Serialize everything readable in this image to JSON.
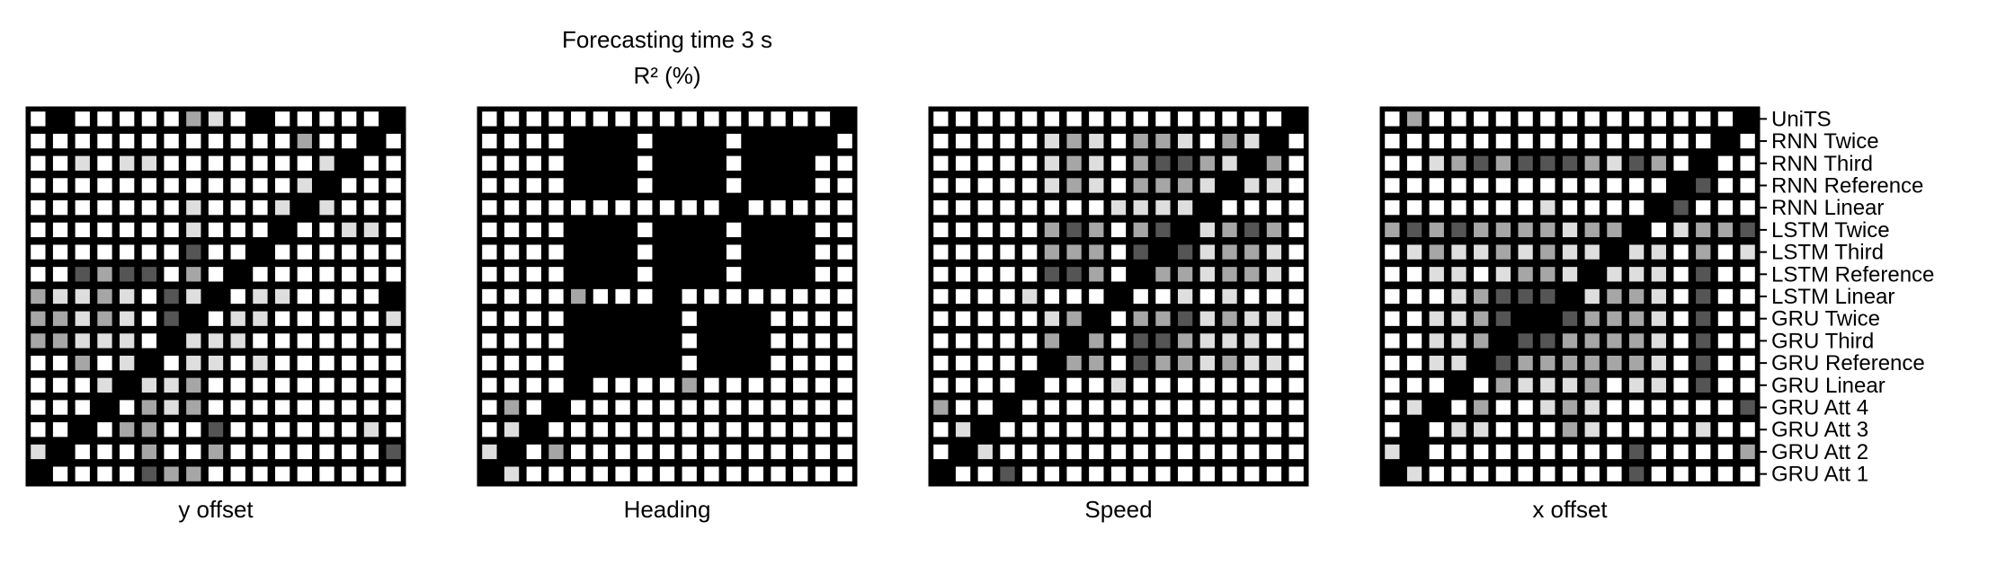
{
  "figure": {
    "title_line1": "Forecasting time 3 s",
    "title_line2": "R² (%)"
  },
  "chart_data": [
    {
      "type": "heatmap",
      "xlabel": "y offset",
      "scale": "0 = white, 4 = black",
      "rows": [
        [
          0,
          4,
          0,
          0,
          0,
          0,
          0,
          2,
          1,
          0,
          4,
          0,
          0,
          0,
          0,
          0,
          4
        ],
        [
          0,
          0,
          0,
          0,
          0,
          0,
          0,
          0,
          0,
          0,
          0,
          0,
          2,
          0,
          0,
          4,
          0
        ],
        [
          0,
          0,
          1,
          0,
          1,
          1,
          0,
          0,
          0,
          0,
          0,
          0,
          0,
          1,
          4,
          0,
          0
        ],
        [
          0,
          0,
          0,
          0,
          0,
          0,
          0,
          0,
          0,
          0,
          0,
          0,
          1,
          4,
          0,
          0,
          0
        ],
        [
          0,
          0,
          0,
          0,
          0,
          0,
          0,
          1,
          0,
          0,
          0,
          1,
          4,
          1,
          0,
          0,
          0
        ],
        [
          0,
          0,
          0,
          0,
          0,
          0,
          0,
          1,
          0,
          0,
          0,
          4,
          0,
          0,
          1,
          1,
          0
        ],
        [
          0,
          0,
          0,
          0,
          0,
          0,
          0,
          3,
          0,
          0,
          4,
          0,
          0,
          0,
          0,
          0,
          0
        ],
        [
          0,
          0,
          3,
          2,
          3,
          3,
          0,
          2,
          0,
          4,
          0,
          0,
          0,
          0,
          0,
          0,
          0
        ],
        [
          2,
          1,
          1,
          2,
          1,
          0,
          3,
          1,
          4,
          0,
          1,
          1,
          0,
          0,
          0,
          0,
          4
        ],
        [
          2,
          2,
          1,
          2,
          1,
          0,
          3,
          4,
          0,
          1,
          1,
          0,
          0,
          0,
          0,
          0,
          1
        ],
        [
          2,
          2,
          1,
          1,
          1,
          0,
          4,
          1,
          1,
          1,
          0,
          0,
          0,
          0,
          0,
          0,
          0
        ],
        [
          0,
          0,
          2,
          0,
          1,
          4,
          0,
          1,
          1,
          0,
          1,
          0,
          0,
          0,
          0,
          0,
          0
        ],
        [
          0,
          0,
          0,
          1,
          4,
          1,
          1,
          2,
          0,
          0,
          0,
          0,
          0,
          0,
          0,
          0,
          0
        ],
        [
          0,
          0,
          0,
          4,
          0,
          2,
          1,
          2,
          0,
          0,
          0,
          0,
          0,
          0,
          0,
          0,
          0
        ],
        [
          0,
          0,
          4,
          0,
          2,
          2,
          0,
          0,
          3,
          0,
          0,
          0,
          0,
          0,
          0,
          1,
          0
        ],
        [
          1,
          4,
          0,
          0,
          0,
          2,
          0,
          0,
          2,
          0,
          0,
          0,
          0,
          0,
          0,
          0,
          3
        ],
        [
          4,
          0,
          0,
          0,
          0,
          3,
          2,
          2,
          0,
          0,
          0,
          0,
          0,
          0,
          0,
          0,
          0
        ]
      ]
    },
    {
      "type": "heatmap",
      "xlabel": "Heading",
      "scale": "0 = white, 4 = black",
      "rows": [
        [
          0,
          0,
          0,
          0,
          0,
          0,
          0,
          0,
          0,
          0,
          0,
          0,
          0,
          0,
          0,
          0,
          4
        ],
        [
          0,
          0,
          0,
          0,
          4,
          4,
          4,
          0,
          4,
          4,
          4,
          0,
          4,
          4,
          4,
          4,
          0
        ],
        [
          0,
          0,
          0,
          0,
          4,
          4,
          4,
          0,
          4,
          4,
          4,
          0,
          4,
          4,
          4,
          0,
          0
        ],
        [
          0,
          0,
          0,
          0,
          4,
          4,
          4,
          0,
          4,
          4,
          4,
          0,
          4,
          4,
          4,
          0,
          0
        ],
        [
          0,
          0,
          0,
          0,
          0,
          0,
          0,
          0,
          0,
          0,
          0,
          4,
          0,
          0,
          0,
          0,
          0
        ],
        [
          0,
          0,
          0,
          0,
          4,
          4,
          4,
          0,
          4,
          4,
          4,
          0,
          4,
          4,
          4,
          0,
          0
        ],
        [
          0,
          0,
          0,
          0,
          4,
          4,
          4,
          0,
          4,
          4,
          4,
          0,
          4,
          4,
          4,
          0,
          0
        ],
        [
          0,
          0,
          0,
          0,
          4,
          4,
          4,
          0,
          4,
          4,
          4,
          0,
          4,
          4,
          4,
          0,
          0
        ],
        [
          0,
          0,
          0,
          0,
          2,
          0,
          0,
          0,
          4,
          0,
          0,
          0,
          0,
          0,
          0,
          0,
          0
        ],
        [
          0,
          0,
          0,
          0,
          4,
          4,
          4,
          4,
          4,
          0,
          4,
          4,
          4,
          0,
          0,
          0,
          0
        ],
        [
          0,
          0,
          0,
          0,
          4,
          4,
          4,
          4,
          4,
          0,
          4,
          4,
          4,
          0,
          0,
          0,
          0
        ],
        [
          0,
          0,
          0,
          0,
          4,
          4,
          4,
          4,
          4,
          0,
          4,
          4,
          4,
          0,
          0,
          0,
          0
        ],
        [
          0,
          0,
          0,
          0,
          4,
          0,
          0,
          0,
          0,
          2,
          0,
          0,
          0,
          0,
          0,
          0,
          0
        ],
        [
          0,
          2,
          0,
          4,
          0,
          0,
          0,
          0,
          0,
          0,
          0,
          0,
          0,
          0,
          0,
          0,
          0
        ],
        [
          0,
          1,
          4,
          0,
          0,
          0,
          0,
          0,
          0,
          0,
          0,
          0,
          0,
          0,
          0,
          0,
          0
        ],
        [
          1,
          4,
          0,
          2,
          0,
          0,
          0,
          0,
          0,
          0,
          0,
          0,
          0,
          0,
          0,
          0,
          0
        ],
        [
          4,
          1,
          0,
          0,
          0,
          0,
          0,
          0,
          0,
          0,
          0,
          0,
          0,
          0,
          0,
          0,
          0
        ]
      ]
    },
    {
      "type": "heatmap",
      "xlabel": "Speed",
      "scale": "0 = white, 4 = black",
      "rows": [
        [
          0,
          0,
          0,
          0,
          0,
          0,
          0,
          0,
          0,
          0,
          0,
          0,
          0,
          0,
          0,
          0,
          4
        ],
        [
          0,
          0,
          0,
          0,
          0,
          1,
          2,
          1,
          0,
          2,
          2,
          1,
          0,
          2,
          1,
          4,
          0
        ],
        [
          0,
          0,
          0,
          0,
          0,
          1,
          2,
          1,
          0,
          2,
          3,
          3,
          2,
          1,
          4,
          2,
          0
        ],
        [
          0,
          0,
          0,
          0,
          0,
          1,
          2,
          1,
          0,
          2,
          2,
          2,
          1,
          4,
          1,
          1,
          0
        ],
        [
          0,
          0,
          0,
          0,
          0,
          0,
          0,
          0,
          1,
          1,
          1,
          1,
          4,
          0,
          0,
          0,
          0
        ],
        [
          0,
          0,
          0,
          0,
          0,
          2,
          3,
          2,
          0,
          2,
          3,
          4,
          1,
          2,
          3,
          2,
          0
        ],
        [
          0,
          0,
          0,
          0,
          0,
          2,
          2,
          2,
          0,
          3,
          4,
          3,
          1,
          2,
          2,
          1,
          0
        ],
        [
          0,
          0,
          0,
          0,
          0,
          3,
          3,
          2,
          0,
          4,
          2,
          2,
          1,
          2,
          2,
          1,
          0
        ],
        [
          0,
          0,
          0,
          0,
          1,
          0,
          0,
          0,
          4,
          0,
          0,
          1,
          0,
          1,
          0,
          0,
          0
        ],
        [
          0,
          0,
          0,
          0,
          0,
          1,
          2,
          4,
          0,
          2,
          2,
          3,
          1,
          2,
          1,
          1,
          0
        ],
        [
          0,
          0,
          0,
          0,
          0,
          2,
          4,
          2,
          0,
          3,
          3,
          2,
          1,
          1,
          1,
          0,
          0
        ],
        [
          0,
          0,
          0,
          0,
          0,
          4,
          2,
          2,
          0,
          3,
          2,
          2,
          1,
          2,
          1,
          1,
          0
        ],
        [
          0,
          0,
          0,
          0,
          4,
          0,
          0,
          0,
          1,
          0,
          0,
          0,
          0,
          0,
          0,
          0,
          0
        ],
        [
          2,
          0,
          0,
          4,
          0,
          0,
          0,
          0,
          0,
          0,
          0,
          0,
          0,
          0,
          0,
          0,
          0
        ],
        [
          0,
          1,
          4,
          0,
          0,
          0,
          0,
          0,
          0,
          0,
          0,
          0,
          0,
          0,
          0,
          0,
          0
        ],
        [
          0,
          4,
          1,
          0,
          0,
          0,
          0,
          0,
          0,
          0,
          0,
          0,
          0,
          0,
          0,
          0,
          0
        ],
        [
          4,
          0,
          0,
          3,
          0,
          0,
          0,
          0,
          0,
          0,
          0,
          0,
          0,
          0,
          0,
          0,
          0
        ]
      ]
    },
    {
      "type": "heatmap",
      "xlabel": "x offset",
      "scale": "0 = white, 4 = black",
      "rows": [
        [
          0,
          2,
          0,
          0,
          0,
          0,
          0,
          0,
          0,
          0,
          0,
          0,
          0,
          0,
          0,
          0,
          4
        ],
        [
          0,
          0,
          0,
          0,
          0,
          0,
          0,
          0,
          0,
          0,
          0,
          0,
          0,
          0,
          0,
          4,
          0
        ],
        [
          0,
          0,
          1,
          2,
          3,
          2,
          3,
          3,
          3,
          2,
          1,
          3,
          2,
          0,
          4,
          0,
          0
        ],
        [
          0,
          0,
          0,
          0,
          0,
          0,
          0,
          0,
          0,
          0,
          0,
          0,
          0,
          4,
          3,
          0,
          0
        ],
        [
          0,
          0,
          0,
          0,
          0,
          0,
          0,
          1,
          0,
          0,
          0,
          0,
          4,
          3,
          0,
          0,
          0
        ],
        [
          2,
          3,
          2,
          3,
          2,
          2,
          2,
          2,
          1,
          2,
          2,
          4,
          0,
          1,
          2,
          2,
          3
        ],
        [
          0,
          1,
          2,
          1,
          1,
          2,
          1,
          2,
          1,
          1,
          4,
          1,
          1,
          0,
          2,
          0,
          1
        ],
        [
          0,
          0,
          1,
          1,
          0,
          1,
          2,
          2,
          1,
          4,
          1,
          1,
          1,
          0,
          3,
          0,
          0
        ],
        [
          0,
          0,
          0,
          1,
          2,
          3,
          3,
          3,
          4,
          1,
          2,
          2,
          1,
          0,
          3,
          0,
          0
        ],
        [
          0,
          0,
          1,
          1,
          2,
          3,
          4,
          4,
          3,
          2,
          2,
          2,
          1,
          0,
          3,
          0,
          0
        ],
        [
          0,
          0,
          1,
          1,
          2,
          4,
          3,
          3,
          2,
          2,
          2,
          2,
          1,
          0,
          3,
          0,
          0
        ],
        [
          0,
          0,
          1,
          1,
          4,
          3,
          2,
          2,
          2,
          2,
          2,
          2,
          1,
          0,
          3,
          0,
          0
        ],
        [
          0,
          0,
          0,
          4,
          0,
          2,
          1,
          1,
          1,
          2,
          0,
          1,
          1,
          0,
          3,
          0,
          0
        ],
        [
          0,
          1,
          4,
          0,
          2,
          0,
          0,
          1,
          2,
          1,
          0,
          0,
          0,
          0,
          0,
          0,
          3
        ],
        [
          0,
          4,
          0,
          1,
          1,
          0,
          0,
          0,
          2,
          1,
          0,
          0,
          0,
          0,
          1,
          0,
          0
        ],
        [
          1,
          4,
          0,
          0,
          0,
          0,
          0,
          0,
          0,
          0,
          0,
          3,
          0,
          0,
          0,
          0,
          2
        ],
        [
          4,
          1,
          0,
          0,
          0,
          0,
          0,
          0,
          0,
          0,
          0,
          3,
          0,
          0,
          0,
          0,
          0
        ]
      ]
    }
  ],
  "row_labels": [
    "UniTS",
    "RNN Twice",
    "RNN Third",
    "RNN Reference",
    "RNN Linear",
    "LSTM Twice",
    "LSTM Third",
    "LSTM Reference",
    "LSTM Linear",
    "GRU Twice",
    "GRU Third",
    "GRU Reference",
    "GRU Linear",
    "GRU Att 4",
    "GRU Att 3",
    "GRU Att 2",
    "GRU Att 1"
  ],
  "colors": {
    "background": "#ffffff",
    "levels": [
      "#ffffff",
      "#dedede",
      "#a6a6a6",
      "#555555",
      "#000000"
    ],
    "grid": "#000000"
  }
}
